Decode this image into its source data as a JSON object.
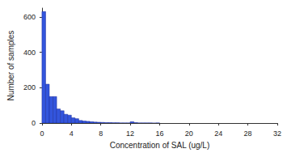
{
  "chart_data": {
    "type": "histogram",
    "x_label": "Concentration of SAL (ug/L)",
    "y_label": "Number of samples",
    "bins": [
      0,
      0.5,
      1,
      1.5,
      2,
      2.5,
      3,
      3.5,
      4,
      4.5,
      5,
      5.5,
      6,
      6.5,
      7,
      7.5,
      8,
      8.5,
      9,
      9.5,
      10,
      10.5,
      11,
      11.5,
      12,
      12.5,
      13,
      13.5,
      14,
      14.5,
      15,
      15.5,
      16
    ],
    "values": [
      630,
      220,
      150,
      150,
      80,
      70,
      50,
      45,
      30,
      25,
      15,
      12,
      10,
      8,
      6,
      5,
      4,
      3,
      3,
      2,
      2,
      1,
      1,
      1,
      8,
      3,
      1,
      1,
      1,
      1,
      0,
      1
    ],
    "color": "#3355dd",
    "xlim": [
      0,
      32
    ],
    "xticks": [
      0,
      4,
      8,
      12,
      16,
      20,
      24,
      28,
      32
    ],
    "ylim": [
      0,
      650
    ],
    "yticks": [
      0,
      200,
      400,
      600
    ],
    "grid": false
  }
}
